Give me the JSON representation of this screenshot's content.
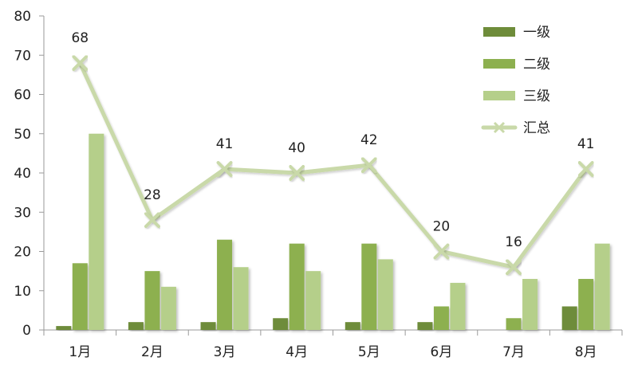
{
  "chart_data": {
    "type": "bar",
    "categories": [
      "1月",
      "2月",
      "3月",
      "4月",
      "5月",
      "6月",
      "7月",
      "8月"
    ],
    "series": [
      {
        "name": "一级",
        "kind": "bar",
        "color": "#6e8c3a",
        "values": [
          1,
          2,
          2,
          3,
          2,
          2,
          0,
          6
        ]
      },
      {
        "name": "二级",
        "kind": "bar",
        "color": "#8db04f",
        "values": [
          17,
          15,
          23,
          22,
          22,
          6,
          3,
          13
        ]
      },
      {
        "name": "三级",
        "kind": "bar",
        "color": "#b5cf8a",
        "values": [
          50,
          11,
          16,
          15,
          18,
          12,
          13,
          22
        ]
      },
      {
        "name": "汇总",
        "kind": "line",
        "color": "#c9d9a9",
        "values": [
          68,
          28,
          41,
          40,
          42,
          20,
          16,
          41
        ]
      }
    ],
    "ylim": [
      0,
      80
    ],
    "yticks": [
      0,
      10,
      20,
      30,
      40,
      50,
      60,
      70,
      80
    ],
    "grid": false,
    "legend": "top-right",
    "data_labels_series": "汇总",
    "line_marker": "x"
  }
}
